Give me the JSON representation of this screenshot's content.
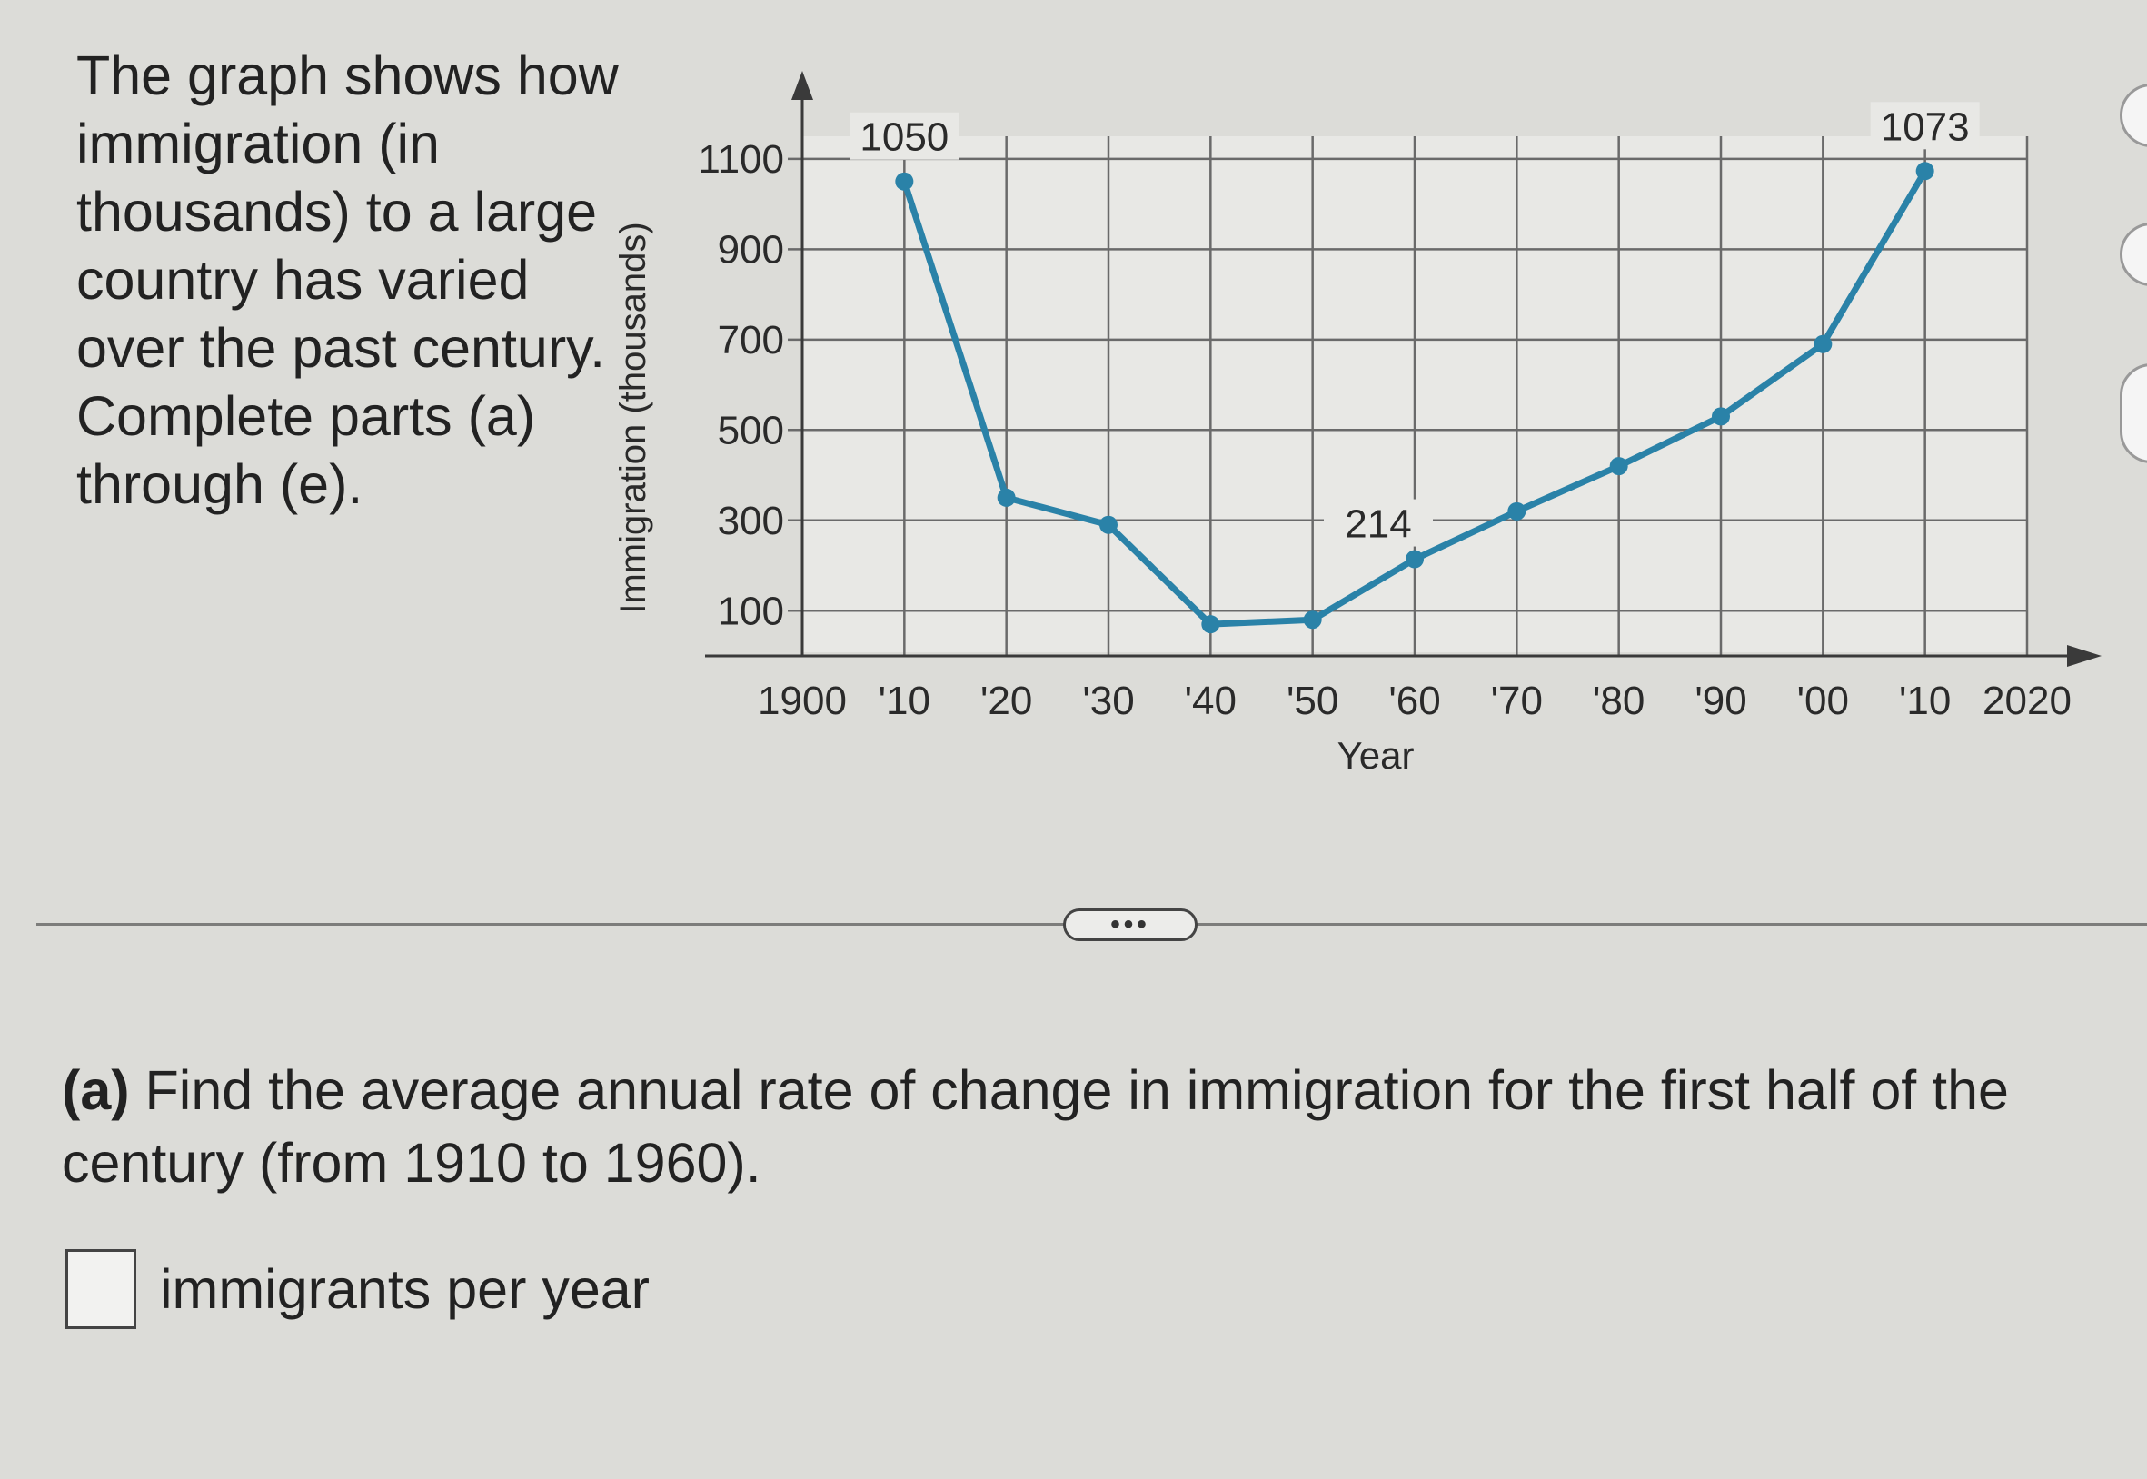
{
  "intro_text": "The graph shows how immigration (in thousands) to a large country has varied over the past century. Complete parts (a) through (e).",
  "more_label": "•••",
  "question": {
    "part_label": "(a)",
    "text": "Find the average annual rate of change in immigration for the first half of the century (from 1910 to 1960).",
    "answer_value": "",
    "answer_unit": "immigrants per year"
  },
  "chart_data": {
    "type": "line",
    "title": "",
    "xlabel": "Year",
    "ylabel": "Immigration (thousands)",
    "x_tick_labels": [
      "1900",
      "'10",
      "'20",
      "'30",
      "'40",
      "'50",
      "'60",
      "'70",
      "'80",
      "'90",
      "'00",
      "'10",
      "2020"
    ],
    "y_tick_labels": [
      "100",
      "300",
      "500",
      "700",
      "900",
      "1100"
    ],
    "xlim": [
      1900,
      2020
    ],
    "ylim": [
      0,
      1150
    ],
    "grid": true,
    "line_color": "#2a82a8",
    "series": [
      {
        "x": [
          1910,
          1920,
          1930,
          1940,
          1950,
          1960,
          1970,
          1980,
          1990,
          2000,
          2010
        ],
        "values": [
          1050,
          350,
          290,
          70,
          80,
          214,
          320,
          420,
          530,
          690,
          1073
        ]
      }
    ],
    "annotations": [
      {
        "x": 1910,
        "y": 1050,
        "text": "1050"
      },
      {
        "x": 1960,
        "y": 214,
        "text": "214"
      },
      {
        "x": 2010,
        "y": 1073,
        "text": "1073"
      }
    ]
  }
}
